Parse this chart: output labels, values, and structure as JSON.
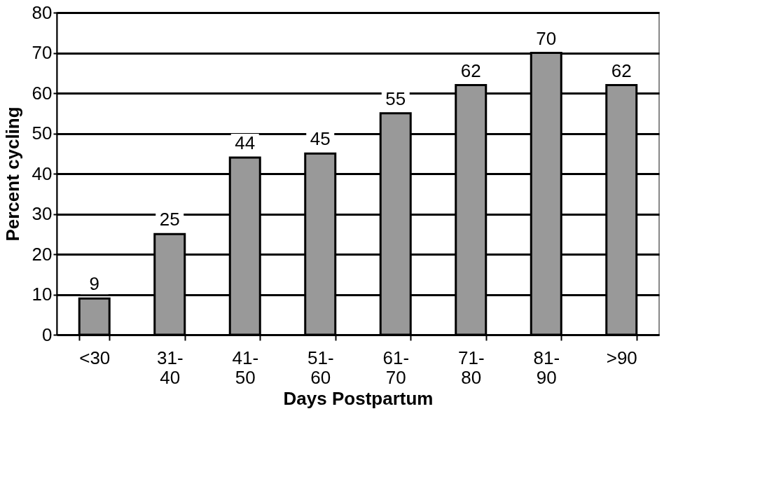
{
  "chart_data": {
    "type": "bar",
    "xlabel": "Days Postpartum",
    "ylabel": "Percent cycling",
    "categories": [
      "<30",
      "31-40",
      "41-50",
      "51-60",
      "61-70",
      "71-80",
      "81-90",
      ">90"
    ],
    "values": [
      9,
      25,
      44,
      45,
      55,
      62,
      70,
      62
    ],
    "color": "#999999",
    "ylim": [
      0,
      80
    ],
    "yticks": [
      0,
      10,
      20,
      30,
      40,
      50,
      60,
      70,
      80
    ],
    "grid": "y",
    "data_labels": true
  }
}
